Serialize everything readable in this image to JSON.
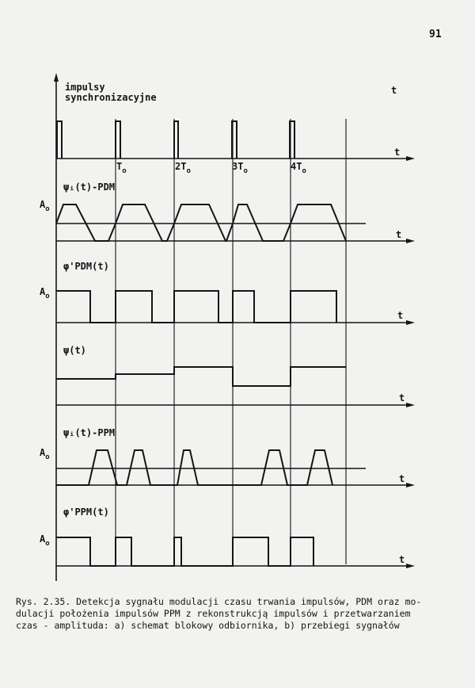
{
  "page_number": "91",
  "colors": {
    "ink": "#151515",
    "paper": "#f2f2f0"
  },
  "panels": {
    "sync": {
      "title_line1": "impulsy",
      "title_line2": "synchronizacyjne",
      "t_label_top": "t",
      "axis_label": "t",
      "tick_labels": [
        {
          "main": "T",
          "sub": "o"
        },
        {
          "main": "2T",
          "sub": "o"
        },
        {
          "main": "3T",
          "sub": "o"
        },
        {
          "main": "4T",
          "sub": "o"
        }
      ]
    },
    "pdm_trap": {
      "label": "ψᵢ(t)-PDM",
      "amp": "A",
      "amp_sub": "o",
      "axis_label": "t"
    },
    "pdm_rect": {
      "label": "φ'PDM(t)",
      "amp": "A",
      "amp_sub": "o",
      "axis_label": "t"
    },
    "psi": {
      "label": "ψ(t)",
      "axis_label": "t"
    },
    "ppm_trap": {
      "label": "ψᵢ(t)-PPM",
      "amp": "A",
      "amp_sub": "o",
      "axis_label": "t"
    },
    "ppm_rect": {
      "label": "φ'PPM(t)",
      "amp": "A",
      "amp_sub": "o",
      "axis_label": "t"
    }
  },
  "caption": {
    "line1": "Rys. 2.35. Detekcja sygnału modulacji czasu trwania impulsów, PDM oraz mo-",
    "line2": "dulacji położenia impulsów PPM z rekonstrukcją impulsów i przetwarzaniem",
    "line3": "czas - amplituda: a) schemat blokowy odbiornika, b) przebiegi sygnałów"
  }
}
